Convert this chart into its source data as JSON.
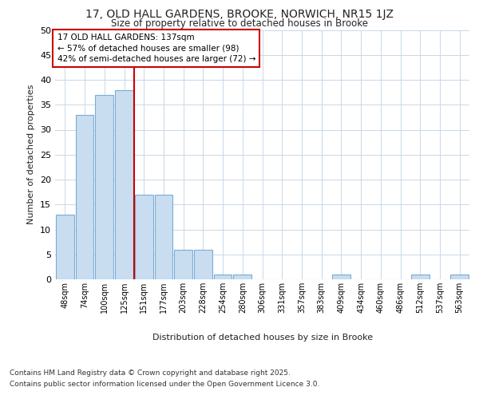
{
  "title_line1": "17, OLD HALL GARDENS, BROOKE, NORWICH, NR15 1JZ",
  "title_line2": "Size of property relative to detached houses in Brooke",
  "xlabel": "Distribution of detached houses by size in Brooke",
  "ylabel": "Number of detached properties",
  "categories": [
    "48sqm",
    "74sqm",
    "100sqm",
    "125sqm",
    "151sqm",
    "177sqm",
    "203sqm",
    "228sqm",
    "254sqm",
    "280sqm",
    "306sqm",
    "331sqm",
    "357sqm",
    "383sqm",
    "409sqm",
    "434sqm",
    "460sqm",
    "486sqm",
    "512sqm",
    "537sqm",
    "563sqm"
  ],
  "values": [
    13,
    33,
    37,
    38,
    17,
    17,
    6,
    6,
    1,
    1,
    0,
    0,
    0,
    0,
    1,
    0,
    0,
    0,
    1,
    0,
    1
  ],
  "bar_color": "#c8ddf0",
  "bar_edge_color": "#7aadd4",
  "red_line_x": 3.5,
  "red_line_color": "#cc0000",
  "annotation_text": "17 OLD HALL GARDENS: 137sqm\n← 57% of detached houses are smaller (98)\n42% of semi-detached houses are larger (72) →",
  "annotation_box_color": "white",
  "annotation_box_edge": "#cc0000",
  "ylim": [
    0,
    50
  ],
  "yticks": [
    0,
    5,
    10,
    15,
    20,
    25,
    30,
    35,
    40,
    45,
    50
  ],
  "footer_line1": "Contains HM Land Registry data © Crown copyright and database right 2025.",
  "footer_line2": "Contains public sector information licensed under the Open Government Licence 3.0.",
  "bg_color": "#ffffff",
  "plot_bg_color": "#ffffff",
  "grid_color": "#c8d8e8"
}
